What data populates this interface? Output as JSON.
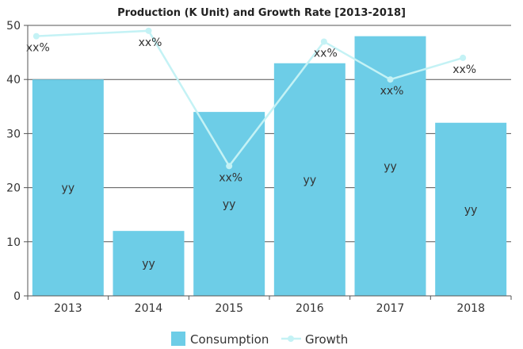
{
  "chart_data": {
    "type": "bar",
    "title": "Production (K Unit) and Growth Rate [2013-2018]",
    "categories": [
      "2013",
      "2014",
      "2015",
      "2016",
      "2017",
      "2018"
    ],
    "ylim": [
      0,
      50
    ],
    "yticks": [
      0,
      10,
      20,
      30,
      40,
      50
    ],
    "grid": true,
    "legend_position": "bottom",
    "series": [
      {
        "name": "Consumption",
        "type": "bar",
        "color": "#6dcde7",
        "values": [
          40,
          12,
          34,
          43,
          48,
          32
        ],
        "data_labels": [
          "yy",
          "yy",
          "yy",
          "yy",
          "yy",
          "yy"
        ]
      },
      {
        "name": "Growth",
        "type": "line",
        "color": "#c4f2f5",
        "values": [
          48,
          49,
          24,
          47,
          40,
          44
        ],
        "data_labels": [
          "xx%",
          "xx%",
          "xx%",
          "xx%",
          "xx%",
          "xx%"
        ]
      }
    ]
  }
}
